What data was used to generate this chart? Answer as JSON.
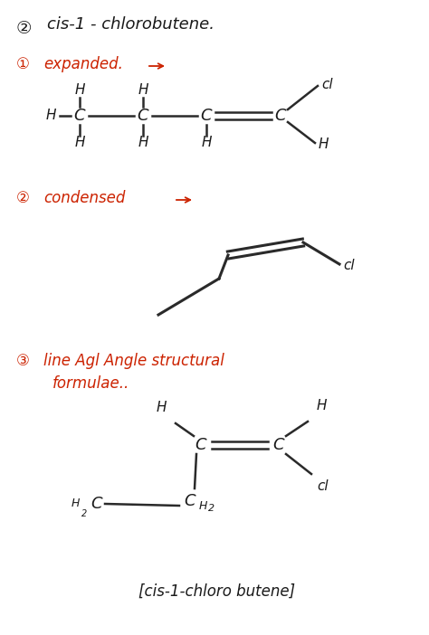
{
  "bg_color": "#ffffff",
  "red_color": "#cc2200",
  "dark_color": "#1a1a1a",
  "line_color": "#2a2a2a",
  "title": "cis-1 - chlorobutene.",
  "sec1_label": "expanded.",
  "sec2_label": "condensed",
  "sec3_label1": "line Agl Angle structural",
  "sec3_label2": "formulae..",
  "footer": "[cis-1-chloro butene]"
}
